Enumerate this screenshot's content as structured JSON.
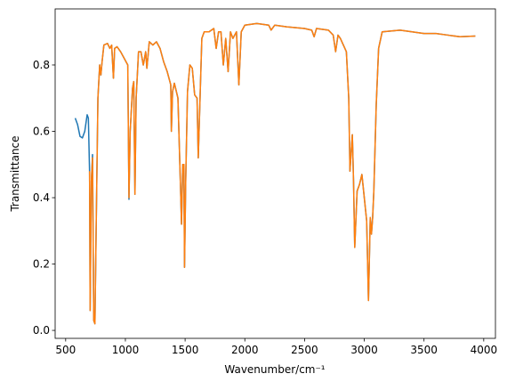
{
  "chart_data": {
    "type": "line",
    "xlabel": "Wavenumber/cm⁻¹",
    "ylabel": "Transmittance",
    "xlim": [
      412,
      4098
    ],
    "ylim": [
      -0.024,
      0.969
    ],
    "xticks": [
      500,
      1000,
      1500,
      2000,
      2500,
      3000,
      3500,
      4000
    ],
    "yticks": [
      {
        "value": 0,
        "label": "0.0"
      },
      0.2,
      0.4,
      0.6,
      0.8
    ],
    "x": [
      580,
      600,
      620,
      640,
      660,
      680,
      690,
      700,
      705,
      715,
      725,
      735,
      745,
      755,
      770,
      785,
      795,
      805,
      820,
      850,
      870,
      885,
      900,
      910,
      930,
      960,
      990,
      1020,
      1030,
      1040,
      1060,
      1070,
      1080,
      1090,
      1110,
      1130,
      1150,
      1170,
      1180,
      1200,
      1230,
      1260,
      1290,
      1320,
      1350,
      1380,
      1385,
      1395,
      1410,
      1440,
      1460,
      1470,
      1480,
      1490,
      1495,
      1505,
      1520,
      1540,
      1560,
      1580,
      1600,
      1610,
      1625,
      1640,
      1660,
      1700,
      1740,
      1760,
      1780,
      1800,
      1820,
      1840,
      1860,
      1880,
      1900,
      1930,
      1950,
      1970,
      2000,
      2100,
      2200,
      2220,
      2250,
      2350,
      2500,
      2560,
      2580,
      2600,
      2700,
      2740,
      2760,
      2780,
      2800,
      2850,
      2870,
      2880,
      2900,
      2910,
      2920,
      2940,
      2960,
      2980,
      3000,
      3020,
      3035,
      3050,
      3060,
      3070,
      3080,
      3100,
      3120,
      3150,
      3300,
      3500,
      3600,
      3700,
      3800,
      3930
    ],
    "series": [
      {
        "color": "#1f77b4",
        "values": [
          0.64,
          0.62,
          0.585,
          0.58,
          0.6,
          0.65,
          0.64,
          0.48,
          0.06,
          0.45,
          0.53,
          0.03,
          0.02,
          0.3,
          0.7,
          0.8,
          0.77,
          0.81,
          0.86,
          0.865,
          0.85,
          0.86,
          0.76,
          0.85,
          0.855,
          0.84,
          0.82,
          0.8,
          0.395,
          0.6,
          0.73,
          0.75,
          0.41,
          0.7,
          0.84,
          0.84,
          0.8,
          0.84,
          0.79,
          0.87,
          0.86,
          0.87,
          0.85,
          0.81,
          0.78,
          0.74,
          0.6,
          0.72,
          0.745,
          0.7,
          0.45,
          0.32,
          0.5,
          0.5,
          0.19,
          0.45,
          0.72,
          0.8,
          0.79,
          0.71,
          0.7,
          0.52,
          0.7,
          0.88,
          0.9,
          0.9,
          0.91,
          0.85,
          0.9,
          0.9,
          0.8,
          0.88,
          0.78,
          0.9,
          0.88,
          0.9,
          0.74,
          0.9,
          0.92,
          0.925,
          0.92,
          0.905,
          0.92,
          0.915,
          0.91,
          0.905,
          0.885,
          0.91,
          0.905,
          0.89,
          0.84,
          0.89,
          0.88,
          0.84,
          0.7,
          0.48,
          0.59,
          0.45,
          0.25,
          0.42,
          0.44,
          0.47,
          0.4,
          0.33,
          0.09,
          0.34,
          0.29,
          0.34,
          0.42,
          0.68,
          0.85,
          0.9,
          0.905,
          0.895,
          0.895,
          0.89,
          0.885,
          0.887
        ]
      },
      {
        "color": "#ff7f0e",
        "values": [
          null,
          null,
          null,
          null,
          null,
          null,
          null,
          0.48,
          0.06,
          0.45,
          0.52,
          0.03,
          0.02,
          0.3,
          0.7,
          0.8,
          0.77,
          0.81,
          0.86,
          0.865,
          0.85,
          0.86,
          0.76,
          0.85,
          0.855,
          0.84,
          0.82,
          0.8,
          0.4,
          0.6,
          0.73,
          0.75,
          0.41,
          0.7,
          0.84,
          0.84,
          0.8,
          0.84,
          0.79,
          0.87,
          0.86,
          0.87,
          0.85,
          0.81,
          0.78,
          0.74,
          0.6,
          0.72,
          0.745,
          0.7,
          0.45,
          0.32,
          0.5,
          0.5,
          0.19,
          0.45,
          0.72,
          0.8,
          0.79,
          0.71,
          0.7,
          0.52,
          0.7,
          0.88,
          0.9,
          0.9,
          0.91,
          0.85,
          0.9,
          0.9,
          0.8,
          0.88,
          0.78,
          0.9,
          0.88,
          0.9,
          0.74,
          0.9,
          0.92,
          0.925,
          0.92,
          0.905,
          0.92,
          0.915,
          0.91,
          0.905,
          0.885,
          0.91,
          0.905,
          0.89,
          0.84,
          0.89,
          0.88,
          0.84,
          0.7,
          0.48,
          0.59,
          0.45,
          0.25,
          0.42,
          0.44,
          0.47,
          0.4,
          0.33,
          0.09,
          0.34,
          0.29,
          0.34,
          0.42,
          0.68,
          0.85,
          0.9,
          0.905,
          0.895,
          0.895,
          0.89,
          0.885,
          0.887
        ]
      }
    ]
  }
}
